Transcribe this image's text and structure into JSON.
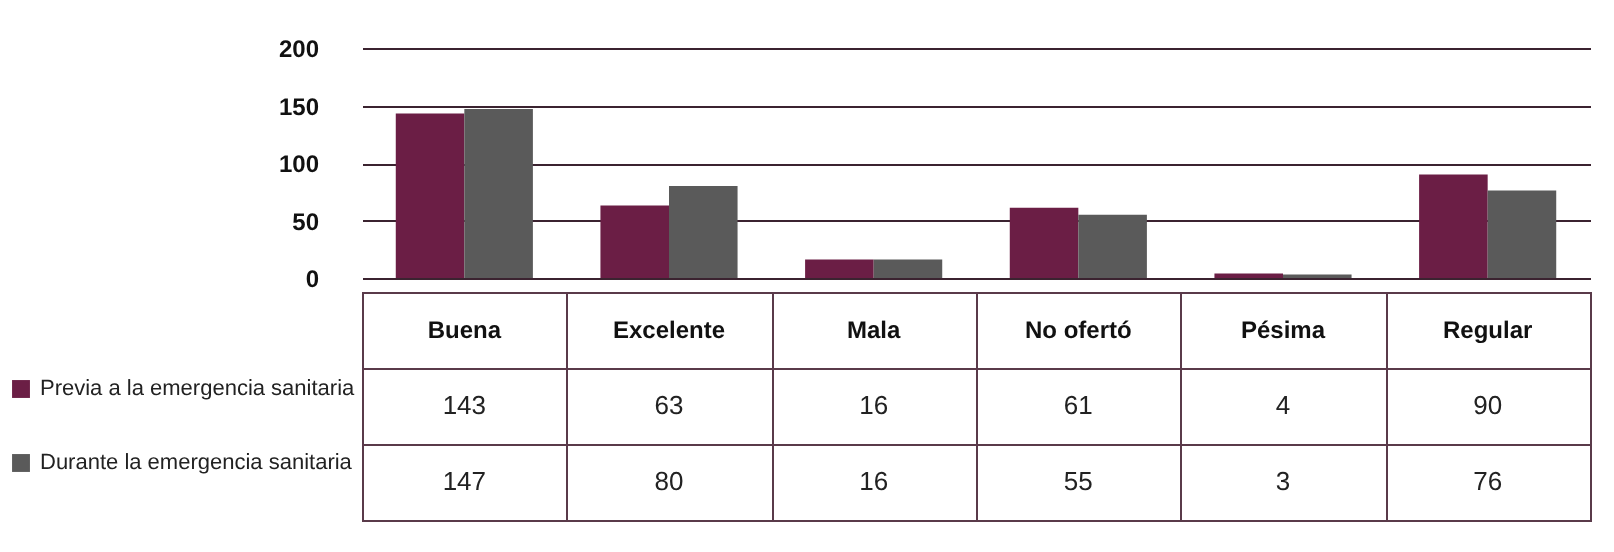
{
  "chart_data": {
    "type": "bar",
    "categories": [
      "Buena",
      "Excelente",
      "Mala",
      "No ofertó",
      "Pésima",
      "Regular"
    ],
    "series": [
      {
        "name": "Previa a la emergencia sanitaria",
        "color": "#6b1e45",
        "values": [
          143,
          63,
          16,
          61,
          4,
          90
        ]
      },
      {
        "name": "Durante la emergencia sanitaria",
        "color": "#5a5a5a",
        "values": [
          147,
          80,
          16,
          55,
          3,
          76
        ]
      }
    ],
    "ylim": [
      0,
      200
    ],
    "yticks": [
      0,
      50,
      100,
      150,
      200
    ],
    "grid": "y",
    "legend": "left",
    "data_labels": true
  }
}
